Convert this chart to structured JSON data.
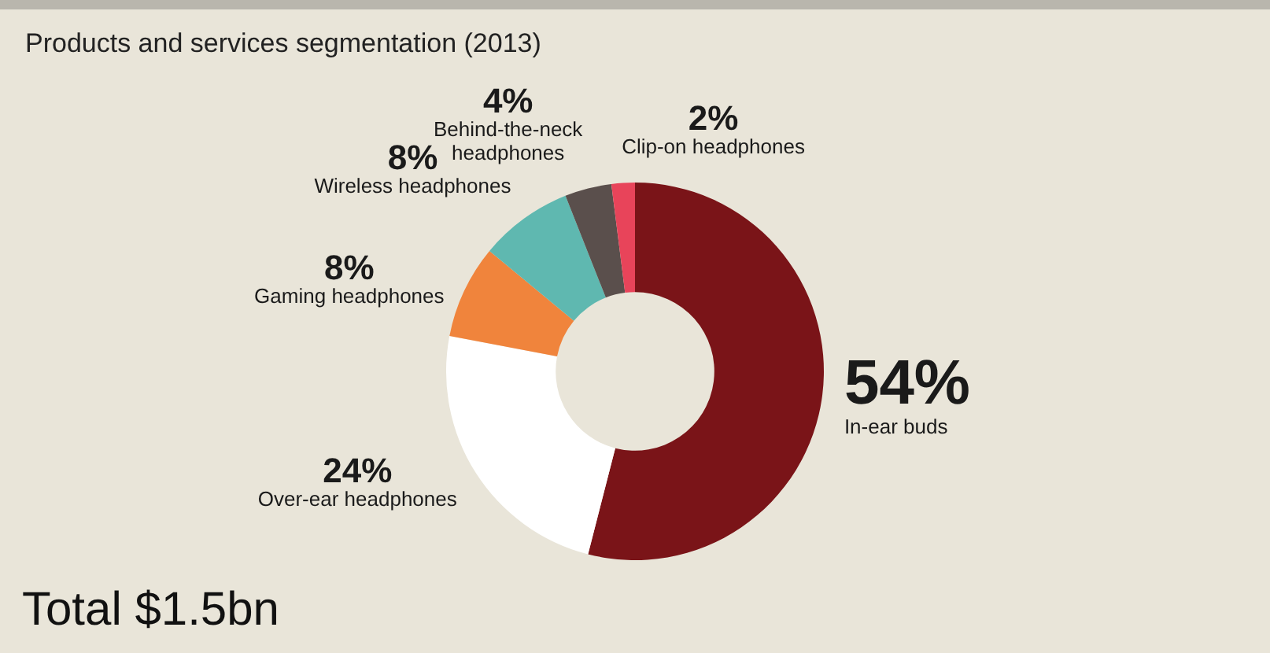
{
  "chart_data": {
    "type": "donut",
    "title": "Products and services segmentation (2013)",
    "categories": [
      "In-ear buds",
      "Over-ear headphones",
      "Gaming headphones",
      "Wireless headphones",
      "Behind-the-neck headphones",
      "Clip-on headphones"
    ],
    "values": [
      54,
      24,
      8,
      8,
      4,
      2
    ],
    "colors": [
      "#7a1418",
      "#ffffff",
      "#f0843c",
      "#5fb8b0",
      "#5a4f4c",
      "#e8445a"
    ],
    "value_labels": [
      "54%",
      "24%",
      "8%",
      "8%",
      "4%",
      "2%"
    ],
    "annotations": [
      "Total $1.5bn"
    ]
  }
}
